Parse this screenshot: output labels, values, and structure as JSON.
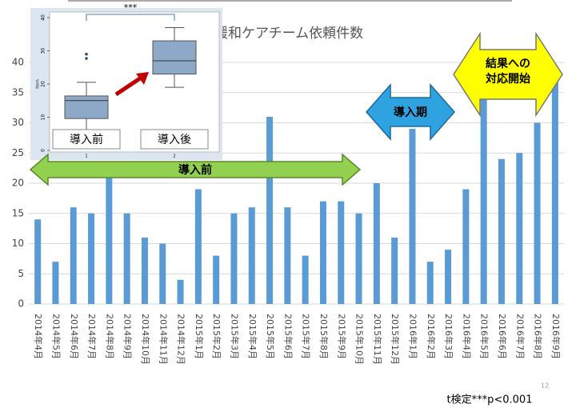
{
  "chart_data": [
    {
      "type": "bar",
      "title": "緩和ケアチーム依頼件数",
      "categories": [
        "2014年4月",
        "2014年5月",
        "2014年6月",
        "2014年7月",
        "2014年8月",
        "2014年9月",
        "2014年10月",
        "2014年11月",
        "2014年12月",
        "2015年1月",
        "2015年2月",
        "2015年3月",
        "2015年4月",
        "2015年5月",
        "2015年6月",
        "2015年7月",
        "2015年8月",
        "2015年9月",
        "2015年10月",
        "2015年11月",
        "2015年12月",
        "2016年1月",
        "2016年2月",
        "2016年3月",
        "2016年4月",
        "2016年5月",
        "2016年6月",
        "2016年7月",
        "2016年8月",
        "2016年9月"
      ],
      "values": [
        14,
        7,
        16,
        15,
        22,
        15,
        11,
        10,
        4,
        19,
        8,
        15,
        16,
        31,
        16,
        8,
        17,
        17,
        15,
        20,
        11,
        29,
        7,
        9,
        19,
        34,
        24,
        25,
        30,
        38
      ],
      "color": "#5b9bd5",
      "ylim": [
        0,
        40
      ],
      "yticks": [
        0,
        5,
        10,
        15,
        20,
        25,
        30,
        35,
        40
      ],
      "grid": true,
      "annotations": [
        "導入前",
        "導入期",
        [
          "結果への",
          "対応開始"
        ]
      ],
      "footnote": "t検定***p<0.001",
      "page_number": "12"
    },
    {
      "type": "box",
      "categories": [
        "1",
        "2"
      ],
      "group_labels": [
        "導入前",
        "導入後"
      ],
      "ylabel": "Item",
      "significance": "***",
      "series": [
        {
          "whisker_low": 5.5,
          "q1": 9.6,
          "median": 15,
          "q3": 16.4,
          "whisker_high": 20.5,
          "outliers": [
            27.7,
            29
          ]
        },
        {
          "whisker_low": 19,
          "q1": 23,
          "median": 27,
          "q3": 33,
          "whisker_high": 37,
          "outliers": []
        }
      ],
      "color": "#8ea9c8",
      "ylim": [
        0,
        40
      ],
      "yticks": [
        0,
        10,
        20,
        30,
        40
      ]
    }
  ]
}
